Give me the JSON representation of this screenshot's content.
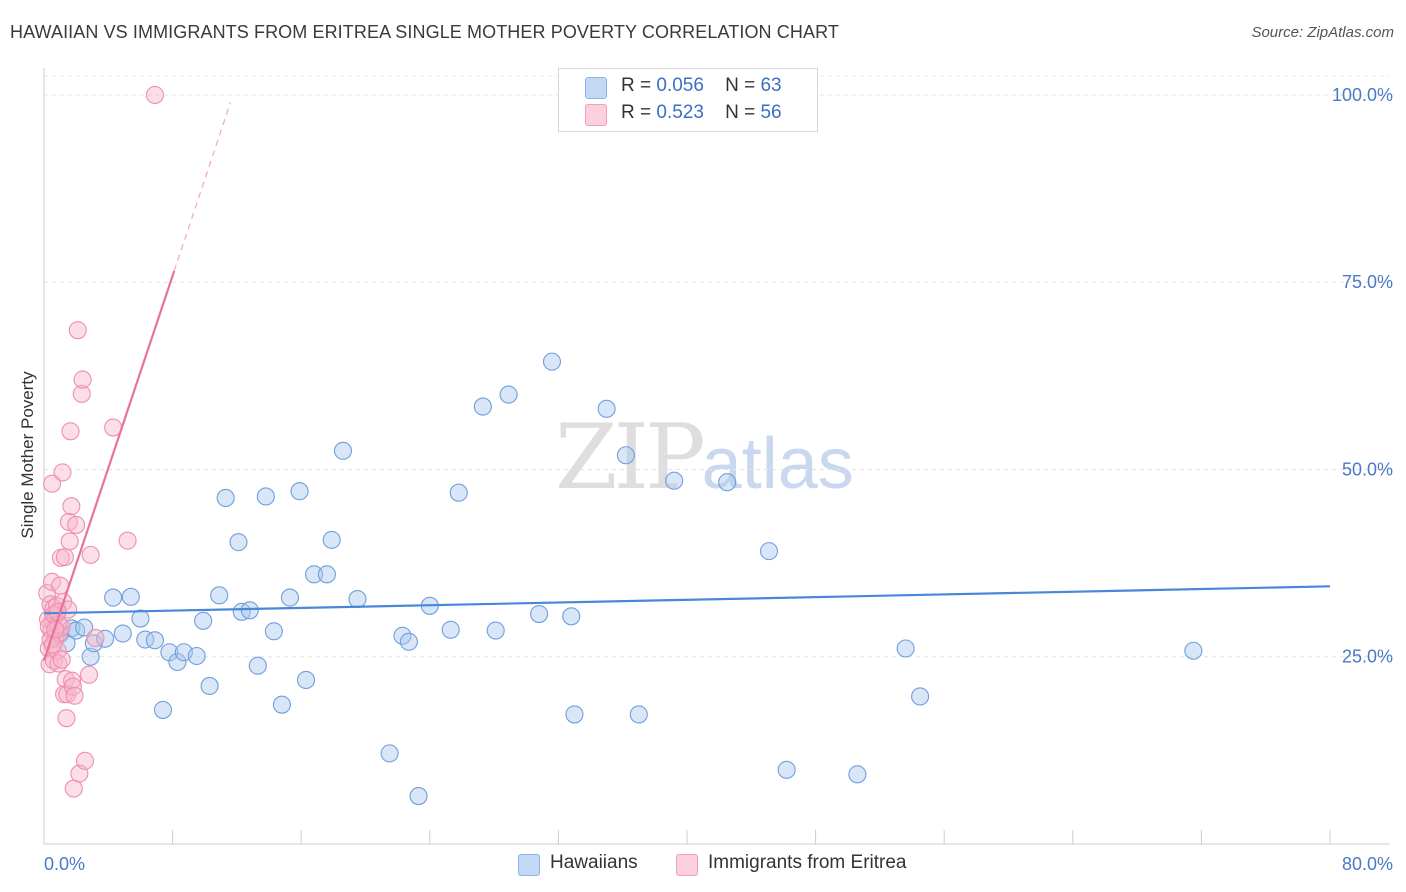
{
  "header": {
    "title": "HAWAIIAN VS IMMIGRANTS FROM ERITREA SINGLE MOTHER POVERTY CORRELATION CHART",
    "source": "Source: ZipAtlas.com"
  },
  "watermark": {
    "zip": "ZIP",
    "atlas": "atlas"
  },
  "legend": {
    "rows": [
      {
        "r_label": "R =",
        "r_value": "0.056",
        "n_label": "N =",
        "n_value": "63",
        "color": "#a9c8f0"
      },
      {
        "r_label": "R =",
        "r_value": "0.523",
        "n_label": "N =",
        "n_value": "56",
        "color": "#f7b6c9"
      }
    ]
  },
  "bottom_legend": [
    {
      "label": "Hawaiians",
      "color": "#a9c8f0"
    },
    {
      "label": "Immigrants from Eritrea",
      "color": "#f7b6c9"
    }
  ],
  "chart_data": {
    "type": "scatter",
    "title": "HAWAIIAN VS IMMIGRANTS FROM ERITREA SINGLE MOTHER POVERTY CORRELATION CHART",
    "xlabel": "",
    "ylabel": "Single Mother Poverty",
    "xlim": [
      0,
      80
    ],
    "ylim": [
      0,
      102
    ],
    "x_tick_labels": [
      "0.0%",
      "80.0%"
    ],
    "y_ticks": [
      25,
      50,
      75,
      100
    ],
    "y_tick_labels": [
      "25.0%",
      "50.0%",
      "75.0%",
      "100.0%"
    ],
    "grid": true,
    "legend_position": "top-center",
    "colors": {
      "hawaiians": "#4a87d6",
      "eritrea": "#e8739a"
    },
    "series": [
      {
        "name": "Hawaiians",
        "trend": {
          "x0": 0,
          "y0": 30.8,
          "x1": 80,
          "y1": 34.4
        },
        "points": [
          [
            1.0,
            28.0
          ],
          [
            1.4,
            26.8
          ],
          [
            1.7,
            28.8
          ],
          [
            2.0,
            28.5
          ],
          [
            2.9,
            25.0
          ],
          [
            3.1,
            26.8
          ],
          [
            3.8,
            27.4
          ],
          [
            4.3,
            32.9
          ],
          [
            4.9,
            28.1
          ],
          [
            5.4,
            33.0
          ],
          [
            6.0,
            30.1
          ],
          [
            6.3,
            27.3
          ],
          [
            6.9,
            27.2
          ],
          [
            7.4,
            17.9
          ],
          [
            7.8,
            25.6
          ],
          [
            8.3,
            24.3
          ],
          [
            8.7,
            25.6
          ],
          [
            9.5,
            25.1
          ],
          [
            9.9,
            29.8
          ],
          [
            10.3,
            21.1
          ],
          [
            10.9,
            33.2
          ],
          [
            11.3,
            46.2
          ],
          [
            12.1,
            40.3
          ],
          [
            12.3,
            31.0
          ],
          [
            12.8,
            31.2
          ],
          [
            13.3,
            23.8
          ],
          [
            13.8,
            46.4
          ],
          [
            14.3,
            28.4
          ],
          [
            14.8,
            18.6
          ],
          [
            15.3,
            32.9
          ],
          [
            15.9,
            47.1
          ],
          [
            16.3,
            21.9
          ],
          [
            16.8,
            36.0
          ],
          [
            17.6,
            36.0
          ],
          [
            17.9,
            40.6
          ],
          [
            18.6,
            52.5
          ],
          [
            19.5,
            32.7
          ],
          [
            21.5,
            12.1
          ],
          [
            22.3,
            27.8
          ],
          [
            22.7,
            27.0
          ],
          [
            23.3,
            6.4
          ],
          [
            24.0,
            31.8
          ],
          [
            25.3,
            28.6
          ],
          [
            25.8,
            46.9
          ],
          [
            27.3,
            58.4
          ],
          [
            28.1,
            28.5
          ],
          [
            28.9,
            60.0
          ],
          [
            30.8,
            30.7
          ],
          [
            31.6,
            64.4
          ],
          [
            32.8,
            30.4
          ],
          [
            33.0,
            17.3
          ],
          [
            35.0,
            58.1
          ],
          [
            36.2,
            51.9
          ],
          [
            37.0,
            17.3
          ],
          [
            39.2,
            48.5
          ],
          [
            42.5,
            48.3
          ],
          [
            45.1,
            39.1
          ],
          [
            46.2,
            9.9
          ],
          [
            50.6,
            9.3
          ],
          [
            53.6,
            26.1
          ],
          [
            54.5,
            19.7
          ],
          [
            71.5,
            25.8
          ],
          [
            2.5,
            28.9
          ]
        ]
      },
      {
        "name": "Immigrants from Eritrea",
        "trend": {
          "x0": 0,
          "y0": 24.5,
          "x1": 8.1,
          "y1": 76.5,
          "dash_x1": 11.6,
          "dash_y1": 99.0
        },
        "points": [
          [
            0.2,
            33.5
          ],
          [
            0.25,
            30.0
          ],
          [
            0.3,
            26.1
          ],
          [
            0.35,
            24.0
          ],
          [
            0.4,
            32.0
          ],
          [
            0.45,
            28.5
          ],
          [
            0.5,
            35.0
          ],
          [
            0.55,
            29.7
          ],
          [
            0.6,
            31.5
          ],
          [
            0.62,
            24.5
          ],
          [
            0.7,
            27.5
          ],
          [
            0.75,
            30.5
          ],
          [
            0.8,
            31.8
          ],
          [
            0.85,
            25.8
          ],
          [
            0.9,
            24.1
          ],
          [
            0.95,
            28.2
          ],
          [
            1.0,
            34.5
          ],
          [
            1.05,
            38.2
          ],
          [
            1.1,
            29.0
          ],
          [
            1.15,
            49.6
          ],
          [
            1.2,
            32.3
          ],
          [
            1.25,
            20.0
          ],
          [
            1.3,
            38.3
          ],
          [
            1.35,
            22.0
          ],
          [
            1.4,
            16.8
          ],
          [
            1.45,
            20.0
          ],
          [
            1.5,
            31.3
          ],
          [
            1.55,
            43.0
          ],
          [
            1.6,
            40.4
          ],
          [
            1.65,
            55.1
          ],
          [
            1.7,
            45.1
          ],
          [
            1.75,
            21.8
          ],
          [
            1.8,
            21.0
          ],
          [
            1.85,
            7.4
          ],
          [
            1.9,
            19.8
          ],
          [
            2.0,
            42.6
          ],
          [
            2.1,
            68.6
          ],
          [
            2.2,
            9.4
          ],
          [
            2.35,
            60.1
          ],
          [
            2.4,
            62.0
          ],
          [
            2.55,
            11.1
          ],
          [
            2.8,
            22.6
          ],
          [
            2.9,
            38.6
          ],
          [
            3.2,
            27.5
          ],
          [
            4.3,
            55.6
          ],
          [
            5.2,
            40.5
          ],
          [
            6.9,
            100.0
          ],
          [
            0.5,
            48.1
          ],
          [
            0.3,
            29.0
          ],
          [
            0.6,
            30.6
          ],
          [
            0.9,
            29.3
          ],
          [
            0.4,
            27.3
          ],
          [
            0.7,
            28.6
          ],
          [
            1.1,
            24.6
          ],
          [
            0.55,
            26.6
          ],
          [
            0.85,
            31.0
          ]
        ]
      }
    ]
  }
}
